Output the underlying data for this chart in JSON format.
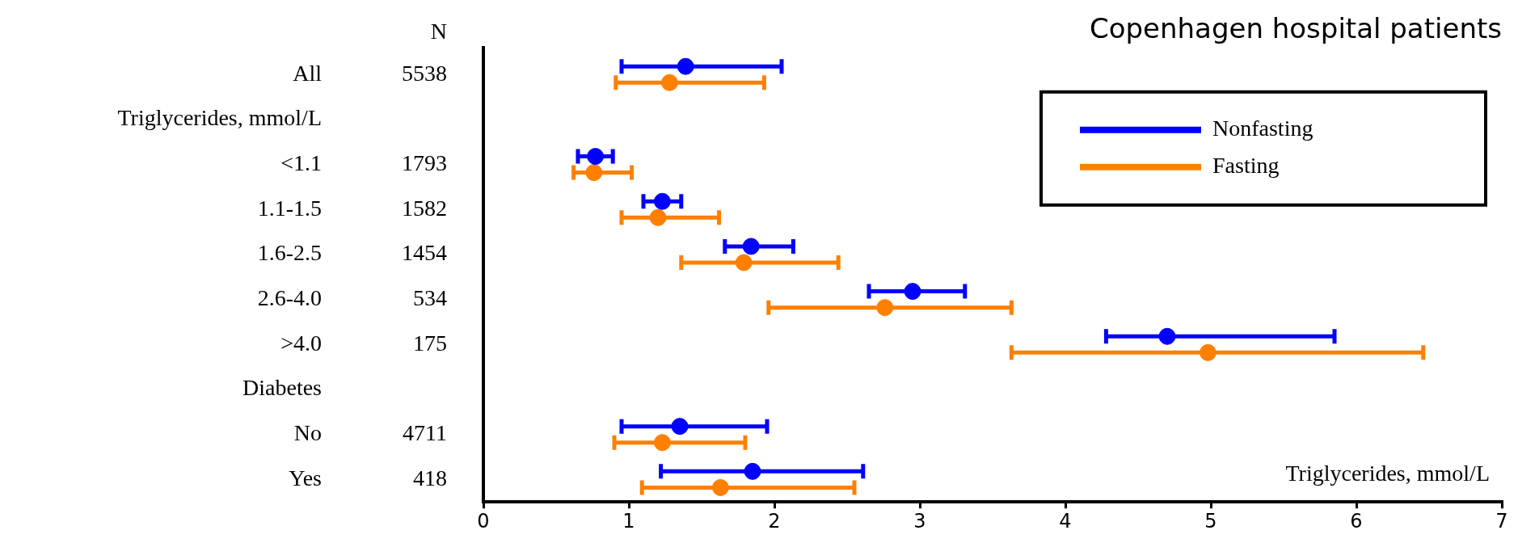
{
  "chart_data": {
    "type": "scatter",
    "title": "Copenhagen hospital patients",
    "xlabel": "Triglycerides, mmol/L",
    "categories": [
      "All",
      "Triglycerides, mmol/L",
      "<1.1",
      "1.1-1.5",
      "1.6-2.5",
      "2.6-4.0",
      ">4.0",
      "Diabetes",
      "No",
      "Yes"
    ],
    "series": [
      {
        "name": "Nonfasting",
        "color": "#0000ff",
        "values": [
          1.39,
          null,
          0.77,
          1.23,
          1.84,
          2.95,
          4.7,
          null,
          1.35,
          1.85
        ],
        "errors": [
          [
            0.95,
            2.05
          ],
          null,
          [
            0.65,
            0.89
          ],
          [
            1.1,
            1.36
          ],
          [
            1.66,
            2.13
          ],
          [
            2.65,
            3.31
          ],
          [
            4.28,
            5.85
          ],
          null,
          [
            0.95,
            1.95
          ],
          [
            1.22,
            2.61
          ]
        ]
      },
      {
        "name": "Fasting",
        "color": "#ff8000",
        "values": [
          1.28,
          null,
          0.76,
          1.2,
          1.79,
          2.76,
          4.98,
          null,
          1.23,
          1.63
        ],
        "errors": [
          [
            0.91,
            1.93
          ],
          null,
          [
            0.62,
            1.02
          ],
          [
            0.95,
            1.62
          ],
          [
            1.36,
            2.44
          ],
          [
            1.96,
            3.63
          ],
          [
            3.63,
            6.46
          ],
          null,
          [
            0.9,
            1.8
          ],
          [
            1.09,
            2.55
          ]
        ]
      }
    ],
    "annotations": [
      "N",
      "5538",
      "1793",
      "1582",
      "1454",
      "534",
      "175",
      "4711",
      "418"
    ],
    "orientation": "horizontal",
    "xlim": [
      0,
      7
    ],
    "xticks": [
      0,
      1,
      2,
      3,
      4,
      5,
      6,
      7
    ],
    "grid": false,
    "legend": "top right",
    "marker": "circle"
  }
}
